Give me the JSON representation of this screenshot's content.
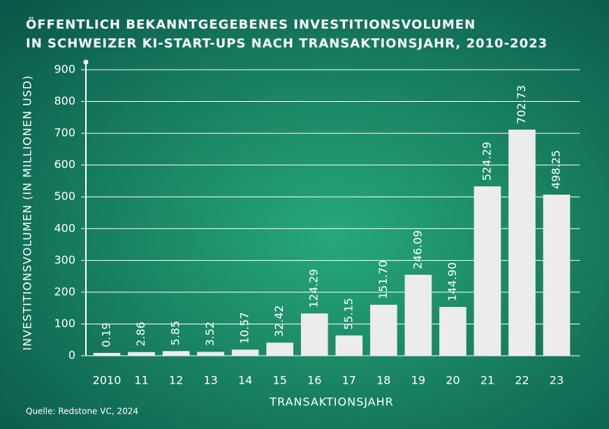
{
  "chart_data": {
    "type": "bar",
    "title": [
      "ÖFFENTLICH BEKANNTGEGEBENES INVESTITIONSVOLUMEN",
      "IN SCHWEIZER KI-START-UPS NACH TRANSAKTIONSJAHR, 2010-2023"
    ],
    "x_label": "TRANSAKTIONSJAHR",
    "y_label": "INVESTITIONSVOLUMEN (IN MILLIONEN USD)",
    "source": "Quelle: Redstone VC, 2024",
    "categories": [
      "2010",
      "11",
      "12",
      "13",
      "14",
      "15",
      "16",
      "17",
      "18",
      "19",
      "20",
      "21",
      "22",
      "23"
    ],
    "values": [
      0.19,
      2.86,
      5.85,
      3.52,
      10.57,
      32.42,
      124.29,
      55.15,
      151.7,
      246.09,
      144.9,
      524.29,
      702.73,
      498.25
    ],
    "value_labels": [
      "0.19",
      "2.86",
      "5.85",
      "3.52",
      "10.57",
      "32.42",
      "124.29",
      "55.15",
      "151.70",
      "246.09",
      "144.90",
      "524.29",
      "702.73",
      "498.25"
    ],
    "color": "#ececec",
    "ylim": [
      0,
      900
    ],
    "yticks": [
      0,
      100,
      200,
      300,
      400,
      500,
      600,
      700,
      800,
      900
    ],
    "grid": true
  }
}
